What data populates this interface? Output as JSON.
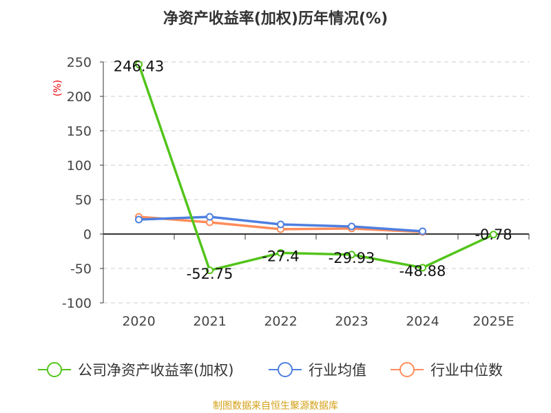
{
  "chart_data": {
    "type": "line",
    "title": "净资产收益率(加权)历年情况(%)",
    "ylabel": "(%)",
    "xlabel": "",
    "categories": [
      "2020",
      "2021",
      "2022",
      "2023",
      "2024",
      "2025E"
    ],
    "ylim": [
      -100,
      250
    ],
    "yticks": [
      250,
      200,
      150,
      100,
      50,
      0,
      -50,
      -100
    ],
    "grid": true,
    "legend_position": "bottom",
    "series": [
      {
        "name": "公司净资产收益率(加权)",
        "color": "#52c41a",
        "values": [
          246.43,
          -52.75,
          -27.4,
          -29.93,
          -48.88,
          -0.78
        ],
        "labels": [
          "246.43",
          "-52.75",
          "-27.4",
          "-29.93",
          "-48.88",
          "-0.78"
        ]
      },
      {
        "name": "行业均值",
        "color": "#4e7fe0",
        "values": [
          21,
          25,
          14,
          11,
          4,
          null
        ]
      },
      {
        "name": "行业中位数",
        "color": "#ff8c5a",
        "values": [
          25,
          17,
          7,
          8,
          3,
          null
        ]
      }
    ]
  },
  "footer": {
    "source": "制图数据来自恒生聚源数据库"
  }
}
